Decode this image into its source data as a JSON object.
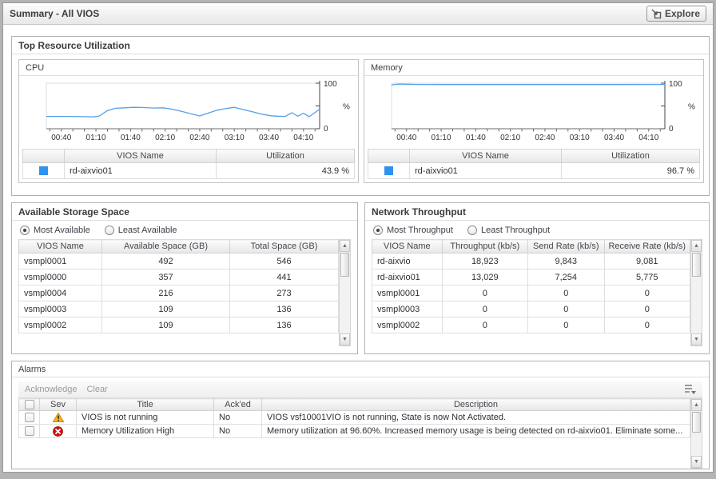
{
  "header": {
    "title": "Summary - All VIOS",
    "explore_label": "Explore"
  },
  "colors": {
    "chart_line": "#56a0e8",
    "legend_swatch": "#2f91f0",
    "warning": "#fdb515",
    "error": "#ce1212"
  },
  "top_panel": {
    "title": "Top Resource Utilization"
  },
  "cpu_panel": {
    "title": "CPU",
    "legend_headers": [
      "VIOS Name",
      "Utilization"
    ],
    "legend_rows": [
      {
        "name": "rd-aixvio01",
        "value": "43.9 %"
      }
    ]
  },
  "memory_panel": {
    "title": "Memory",
    "legend_headers": [
      "VIOS Name",
      "Utilization"
    ],
    "legend_rows": [
      {
        "name": "rd-aixvio01",
        "value": "96.7 %"
      }
    ]
  },
  "storage_panel": {
    "title": "Available Storage Space",
    "radios": [
      {
        "label": "Most Available",
        "selected": true
      },
      {
        "label": "Least Available",
        "selected": false
      }
    ],
    "headers": [
      "VIOS Name",
      "Available Space (GB)",
      "Total Space (GB)"
    ],
    "rows": [
      [
        "vsmpl0001",
        "492",
        "546"
      ],
      [
        "vsmpl0000",
        "357",
        "441"
      ],
      [
        "vsmpl0004",
        "216",
        "273"
      ],
      [
        "vsmpl0003",
        "109",
        "136"
      ],
      [
        "vsmpl0002",
        "109",
        "136"
      ]
    ]
  },
  "network_panel": {
    "title": "Network Throughput",
    "radios": [
      {
        "label": "Most Throughput",
        "selected": true
      },
      {
        "label": "Least Throughput",
        "selected": false
      }
    ],
    "headers": [
      "VIOS Name",
      "Throughput (kb/s)",
      "Send Rate (kb/s)",
      "Receive Rate (kb/s)"
    ],
    "rows": [
      [
        "rd-aixvio",
        "18,923",
        "9,843",
        "9,081"
      ],
      [
        "rd-aixvio01",
        "13,029",
        "7,254",
        "5,775"
      ],
      [
        "vsmpl0001",
        "0",
        "0",
        "0"
      ],
      [
        "vsmpl0003",
        "0",
        "0",
        "0"
      ],
      [
        "vsmpl0002",
        "0",
        "0",
        "0"
      ]
    ]
  },
  "alarms_panel": {
    "title": "Alarms",
    "toolbar": {
      "acknowledge": "Acknowledge",
      "clear": "Clear"
    },
    "headers": [
      "",
      "Sev",
      "Title",
      "Ack'ed",
      "Description"
    ],
    "rows": [
      {
        "sev": "warning",
        "title": "VIOS is not running",
        "acked": "No",
        "description": "VIOS vsf10001VIO is not running, State is now Not Activated."
      },
      {
        "sev": "error",
        "title": "Memory Utilization High",
        "acked": "No",
        "description": "Memory utilization at 96.60%. Increased memory usage is being detected on rd-aixvio01. Eliminate some..."
      }
    ]
  },
  "chart_data": [
    {
      "type": "line",
      "title": "CPU",
      "ylabel": "%",
      "ylim": [
        0,
        100
      ],
      "y_axis_labels": {
        "top": "100",
        "bottom": "0"
      },
      "x_start_min": 27,
      "x_end_min": 264,
      "x_ticks": [
        {
          "min": 40,
          "label": "00:40"
        },
        {
          "min": 70,
          "label": "01:10"
        },
        {
          "min": 100,
          "label": "01:40"
        },
        {
          "min": 130,
          "label": "02:10"
        },
        {
          "min": 160,
          "label": "02:40"
        },
        {
          "min": 190,
          "label": "03:10"
        },
        {
          "min": 220,
          "label": "03:40"
        },
        {
          "min": 250,
          "label": "04:10"
        }
      ],
      "series": [
        {
          "name": "rd-aixvio01",
          "points": [
            [
              27,
              27
            ],
            [
              45,
              27
            ],
            [
              60,
              26.5
            ],
            [
              68,
              26
            ],
            [
              73,
              28
            ],
            [
              80,
              40
            ],
            [
              87,
              45
            ],
            [
              95,
              46
            ],
            [
              103,
              47
            ],
            [
              112,
              46.5
            ],
            [
              120,
              45.5
            ],
            [
              128,
              46
            ],
            [
              136,
              43
            ],
            [
              146,
              37
            ],
            [
              155,
              31
            ],
            [
              160,
              28
            ],
            [
              167,
              34
            ],
            [
              174,
              40
            ],
            [
              182,
              44
            ],
            [
              190,
              47
            ],
            [
              198,
              42
            ],
            [
              206,
              37
            ],
            [
              214,
              32
            ],
            [
              222,
              28.5
            ],
            [
              228,
              27.5
            ],
            [
              234,
              27
            ],
            [
              240,
              35
            ],
            [
              245,
              27.5
            ],
            [
              250,
              34
            ],
            [
              255,
              26.5
            ],
            [
              264,
              43
            ]
          ]
        }
      ]
    },
    {
      "type": "line",
      "title": "Memory",
      "ylabel": "%",
      "ylim": [
        0,
        100
      ],
      "y_axis_labels": {
        "top": "100",
        "bottom": "0"
      },
      "x_start_min": 27,
      "x_end_min": 264,
      "x_ticks": [
        {
          "min": 40,
          "label": "00:40"
        },
        {
          "min": 70,
          "label": "01:10"
        },
        {
          "min": 100,
          "label": "01:40"
        },
        {
          "min": 130,
          "label": "02:10"
        },
        {
          "min": 160,
          "label": "02:40"
        },
        {
          "min": 190,
          "label": "03:10"
        },
        {
          "min": 220,
          "label": "03:40"
        },
        {
          "min": 250,
          "label": "04:10"
        }
      ],
      "series": [
        {
          "name": "rd-aixvio01",
          "points": [
            [
              27,
              96.3
            ],
            [
              33,
              98
            ],
            [
              40,
              97.8
            ],
            [
              50,
              97.2
            ],
            [
              70,
              97
            ],
            [
              120,
              97
            ],
            [
              180,
              97
            ],
            [
              230,
              97
            ],
            [
              264,
              97.2
            ]
          ]
        }
      ]
    }
  ]
}
